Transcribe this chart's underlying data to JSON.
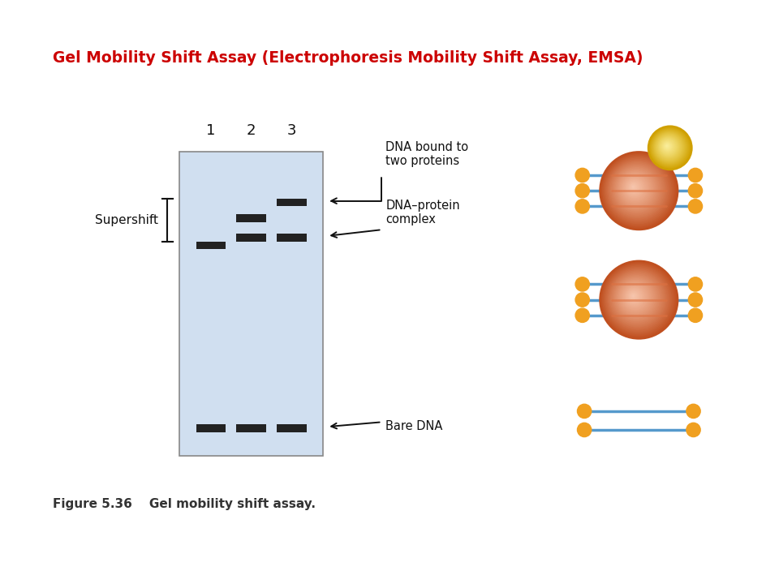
{
  "title": "Gel Mobility Shift Assay (Electrophoresis Mobility Shift Assay, EMSA)",
  "title_color": "#cc0000",
  "title_fontsize": 13.5,
  "figure_caption": "Figure 5.36    Gel mobility shift assay.",
  "background_color": "#ffffff",
  "gel_color": "#d0dff0",
  "gel_edge_color": "#888888",
  "band_color": "#222222",
  "dna_color": "#5599cc",
  "protein_color_center": "#f09060",
  "protein_color_edge": "#d06030",
  "protein2_color": "#f0c828",
  "end_dot_color": "#f0a020",
  "text_color": "#111111",
  "supershift_text": "Supershift",
  "annotation1": "DNA bound to\ntwo proteins",
  "annotation2": "DNA–protein\ncomplex",
  "annotation3": "Bare DNA",
  "caption": "Figure 5.36    Gel mobility shift assay."
}
